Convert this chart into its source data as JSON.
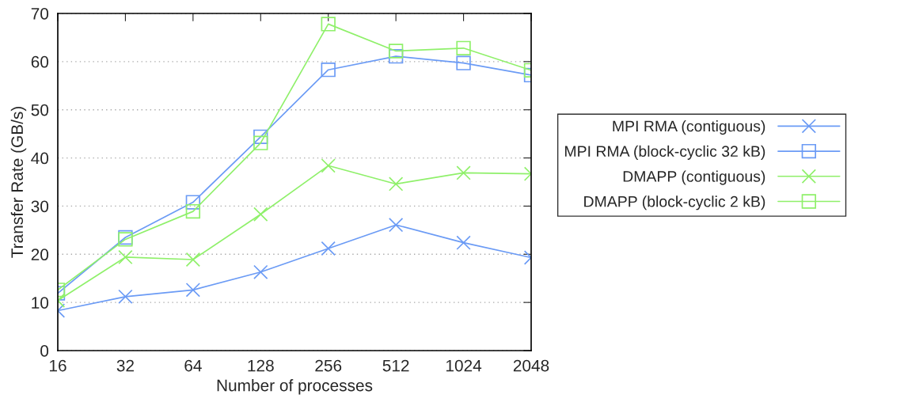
{
  "chart_data": {
    "type": "line",
    "xlabel": "Number of processes",
    "ylabel": "Transfer Rate (GB/s)",
    "categories": [
      "16",
      "32",
      "64",
      "128",
      "256",
      "512",
      "1024",
      "2048"
    ],
    "ylim": [
      0,
      70
    ],
    "yticks": [
      0,
      10,
      20,
      30,
      40,
      50,
      60,
      70
    ],
    "grid": "y",
    "legend": "right",
    "series": [
      {
        "name": "MPI RMA (contiguous)",
        "color": "#6b9bf5",
        "marker": "cross",
        "values": [
          8.3,
          11.2,
          12.6,
          16.3,
          21.2,
          26.1,
          22.4,
          19.3
        ]
      },
      {
        "name": "MPI RMA (block-cyclic 32 kB)",
        "color": "#6b9bf5",
        "marker": "square",
        "values": [
          11.9,
          23.5,
          30.8,
          44.4,
          58.3,
          61.1,
          59.7,
          57.2
        ]
      },
      {
        "name": "DMAPP (contiguous)",
        "color": "#8ff06a",
        "marker": "cross",
        "values": [
          10.4,
          19.4,
          18.9,
          28.3,
          38.4,
          34.6,
          36.9,
          36.7
        ]
      },
      {
        "name": "DMAPP (block-cyclic 2 kB)",
        "color": "#8ff06a",
        "marker": "square",
        "values": [
          12.6,
          23.1,
          28.9,
          43.1,
          67.8,
          62.2,
          62.8,
          58.2
        ]
      }
    ]
  }
}
